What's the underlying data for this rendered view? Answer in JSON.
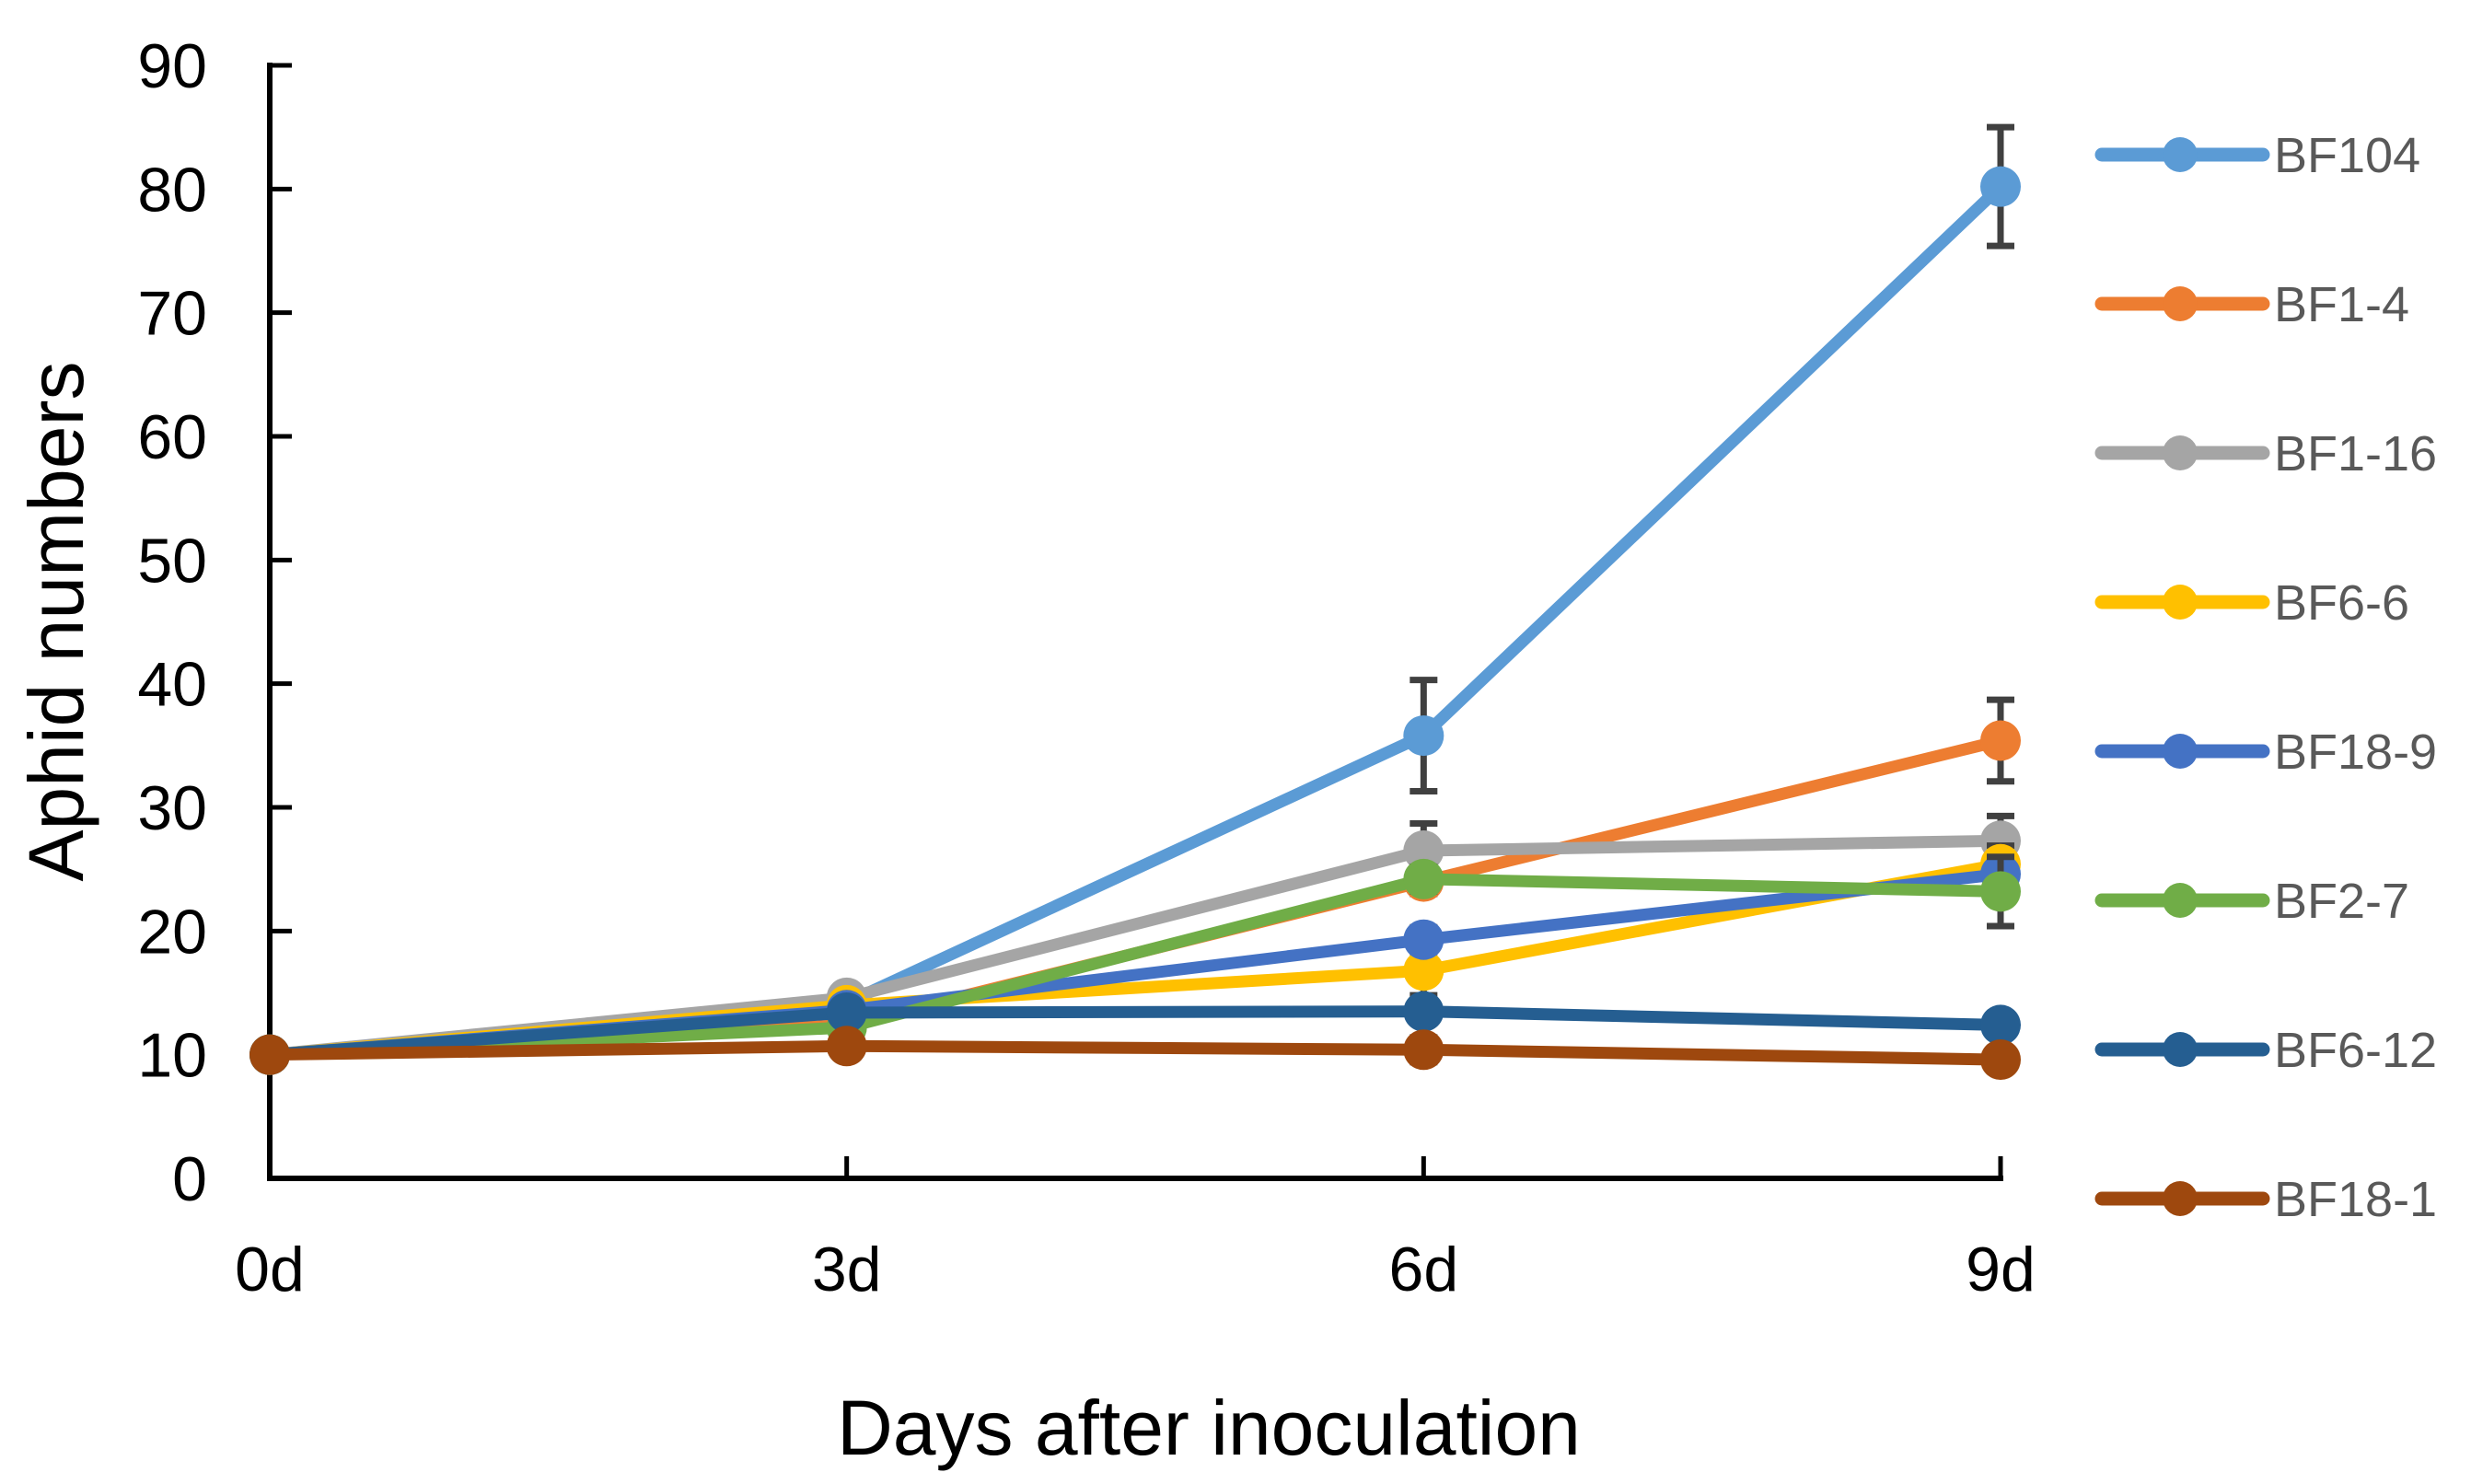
{
  "chart_data": {
    "type": "line",
    "title": "",
    "xlabel": "Days after inoculation",
    "ylabel": "Aphid numbers",
    "categories": [
      "0d",
      "3d",
      "6d",
      "9d"
    ],
    "ylim": [
      0,
      90
    ],
    "ytick_step": 10,
    "ytick_labels": [
      "0",
      "10",
      "20",
      "30",
      "40",
      "50",
      "60",
      "70",
      "80",
      "90"
    ],
    "grid": false,
    "legend_position": "right",
    "marker_style": "circle",
    "series": [
      {
        "name": "BF104",
        "color": "#5B9BD5",
        "values": [
          10,
          14.2,
          35.8,
          80.2
        ],
        "errors": [
          0.3,
          0.8,
          4.5,
          4.8
        ]
      },
      {
        "name": "BF1-4",
        "color": "#ED7D31",
        "values": [
          10,
          12.4,
          24.0,
          35.4
        ],
        "errors": [
          0.3,
          0.5,
          1.0,
          3.3
        ]
      },
      {
        "name": "BF1-16",
        "color": "#A5A5A5",
        "values": [
          10,
          14.6,
          26.5,
          27.3
        ],
        "errors": [
          0.3,
          0.8,
          2.2,
          2.0
        ]
      },
      {
        "name": "BF6-6",
        "color": "#FFC000",
        "values": [
          10,
          14.0,
          16.8,
          25.4
        ],
        "errors": [
          0.3,
          0.5,
          2.0,
          1.5
        ]
      },
      {
        "name": "BF18-9",
        "color": "#4472C4",
        "values": [
          10,
          13.6,
          19.3,
          24.6
        ],
        "errors": [
          0.3,
          0.5,
          1.0,
          1.2
        ]
      },
      {
        "name": "BF2-7",
        "color": "#70AD47",
        "values": [
          10,
          12.2,
          24.2,
          23.2
        ],
        "errors": [
          0.3,
          0.5,
          1.0,
          2.8
        ]
      },
      {
        "name": "BF6-12",
        "color": "#255E91",
        "values": [
          10,
          13.4,
          13.5,
          12.4
        ],
        "errors": [
          0.3,
          0.5,
          0.8,
          0.8
        ]
      },
      {
        "name": "BF18-1",
        "color": "#9E480E",
        "values": [
          10,
          10.7,
          10.4,
          9.6
        ],
        "errors": [
          0.3,
          0.4,
          1.0,
          0.5
        ]
      }
    ],
    "error_bar_color": "#404040",
    "axis_color": "#000000",
    "tick_label_color": "#000000",
    "legend_text_color": "#595959"
  }
}
